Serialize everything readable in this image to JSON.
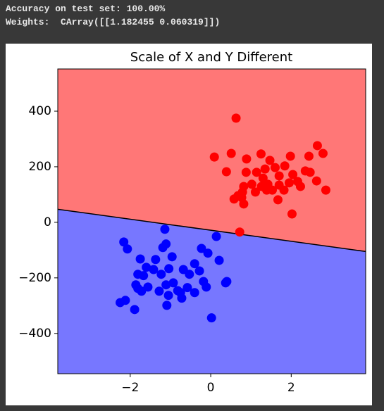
{
  "output_lines": [
    "Accuracy on test set: 100.00%",
    "Weights:  CArray([[1.182455 0.060319]])"
  ],
  "chart_data": {
    "type": "scatter",
    "title": "Scale of X and Y Different",
    "xlim": [
      -3.8,
      3.85
    ],
    "ylim": [
      -545,
      552
    ],
    "xticks": [
      {
        "value": -2,
        "label": "−2"
      },
      0,
      2
    ],
    "yticks": [
      {
        "value": -400,
        "label": "−400"
      },
      {
        "value": -200,
        "label": "−200"
      },
      0,
      200,
      400
    ],
    "regions": {
      "above_color": "#ff7777",
      "below_color": "#7777ff"
    },
    "boundary": {
      "x": [
        -3.8,
        3.85
      ],
      "y": [
        47,
        -105
      ],
      "color": "#000000"
    },
    "series": [
      {
        "color": "#ff0000",
        "x": [
          0.63,
          0.09,
          0.51,
          0.39,
          0.89,
          1.25,
          1.47,
          1.98,
          2.44,
          2.65,
          2.79,
          2.35,
          2.47,
          2.63,
          2.86,
          2.23,
          2.04,
          1.84,
          1.7,
          1.6,
          1.35,
          1.3,
          1.14,
          0.88,
          0.82,
          0.79,
          0.68,
          0.58,
          0.77,
          0.82,
          1.11,
          1.26,
          1.39,
          1.53,
          1.67,
          1.82,
          1.95,
          2.16,
          2.02,
          0.72,
          1.42,
          1.7,
          1.02
        ],
        "y": [
          375,
          235,
          248,
          182,
          228,
          246,
          223,
          238,
          238,
          276,
          248,
          185,
          180,
          149,
          116,
          129,
          172,
          203,
          167,
          197,
          192,
          159,
          180,
          180,
          129,
          109,
          96,
          84,
          89,
          66,
          109,
          129,
          116,
          116,
          81,
          116,
          142,
          147,
          30,
          -35,
          137,
          134,
          137
        ]
      },
      {
        "color": "#0000ff",
        "x": [
          -1.14,
          -2.16,
          -2.07,
          0.14,
          -1.19,
          -1.11,
          -0.96,
          -1.37,
          -1.75,
          -1.6,
          -1.81,
          -1.67,
          -1.42,
          -1.23,
          -1.04,
          -0.68,
          -0.53,
          -0.4,
          -0.23,
          -0.07,
          0.21,
          -0.28,
          -0.18,
          -0.11,
          0.37,
          0.4,
          -1.11,
          -0.93,
          -0.75,
          -0.82,
          -0.72,
          -0.4,
          -1.28,
          -1.56,
          -1.72,
          -1.86,
          -1.81,
          -2.25,
          -2.12,
          -1.89,
          -1.09,
          0.02,
          -1.05,
          -0.58
        ],
        "y": [
          -25,
          -71,
          -96,
          -51,
          -91,
          -78,
          -124,
          -134,
          -132,
          -162,
          -187,
          -192,
          -170,
          -187,
          -167,
          -170,
          -187,
          -149,
          -94,
          -111,
          -137,
          -175,
          -213,
          -233,
          -218,
          -213,
          -225,
          -218,
          -253,
          -246,
          -273,
          -253,
          -248,
          -233,
          -248,
          -225,
          -238,
          -289,
          -281,
          -314,
          -299,
          -344,
          -263,
          -235
        ]
      }
    ]
  }
}
